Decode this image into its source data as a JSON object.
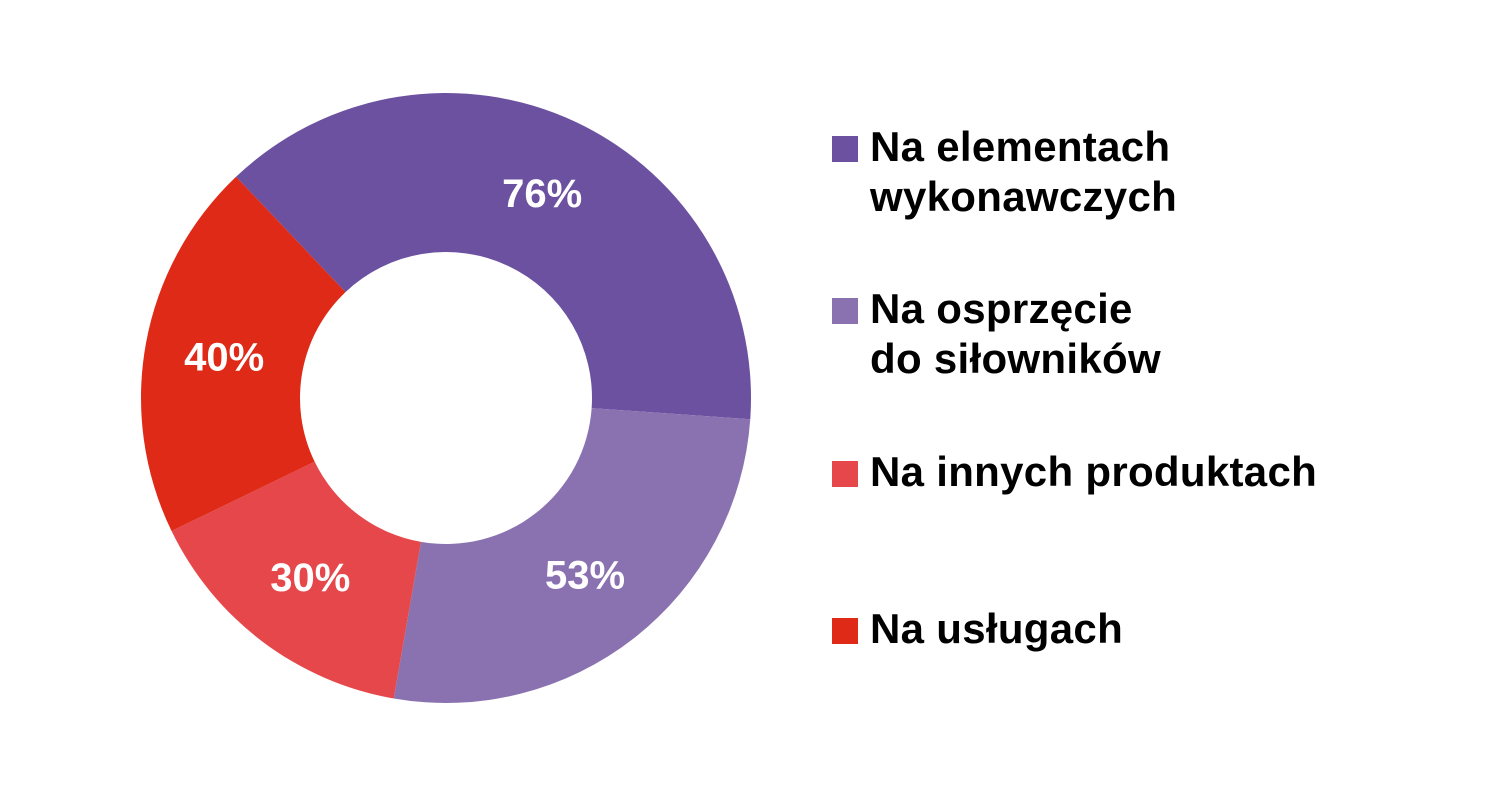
{
  "chart_data": {
    "type": "pie",
    "variant": "donut",
    "title": "",
    "legend_position": "right",
    "slices": [
      {
        "label": "Na elementach\nwykonawczych",
        "value": 76,
        "value_label": "76%",
        "color": "#6b51a0"
      },
      {
        "label": "Na osprzęcie\ndo siłowników",
        "value": 53,
        "value_label": "53%",
        "color": "#8a72b1"
      },
      {
        "label": "Na innych produktach",
        "value": 30,
        "value_label": "30%",
        "color": "#e6474a"
      },
      {
        "label": "Na usługach",
        "value": 40,
        "value_label": "40%",
        "color": "#de2a17"
      }
    ]
  }
}
